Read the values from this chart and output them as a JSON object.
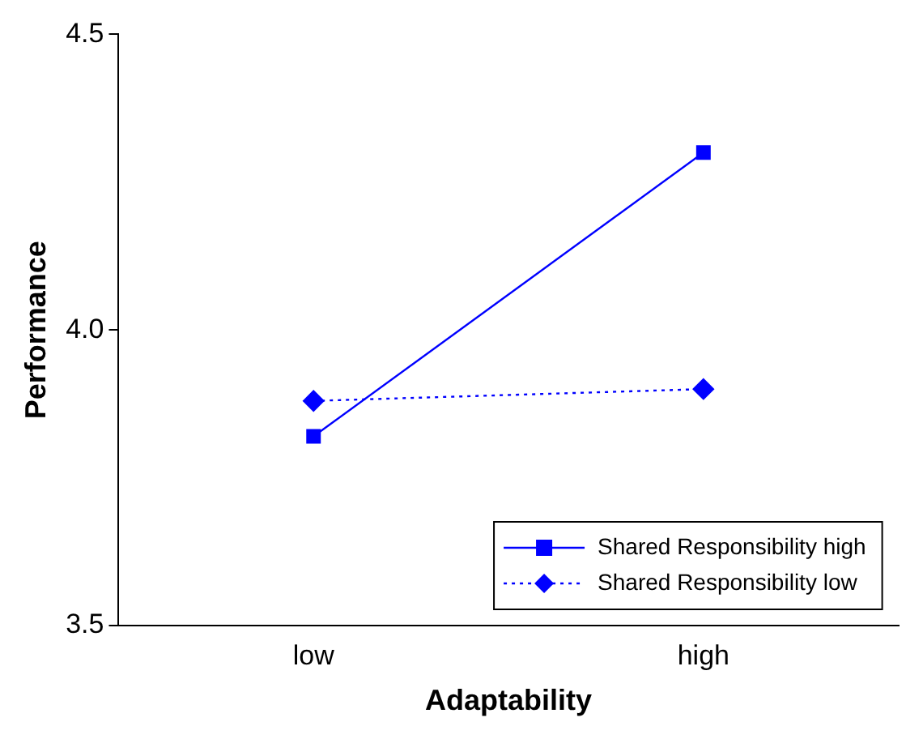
{
  "chart_data": {
    "type": "line",
    "xlabel": "Adaptability",
    "ylabel": "Performance",
    "categories": [
      "low",
      "high"
    ],
    "series": [
      {
        "name": "Shared Responsibility high",
        "color": "#0000ff",
        "values": [
          3.82,
          4.3
        ],
        "marker": "square",
        "line_style": "solid"
      },
      {
        "name": "Shared Responsibility low",
        "color": "#0000ff",
        "values": [
          3.88,
          3.9
        ],
        "marker": "diamond",
        "line_style": "dotted"
      }
    ],
    "ylim": [
      3.5,
      4.5
    ],
    "yticks": [
      {
        "value": 3.5,
        "label": "3.5"
      },
      {
        "value": 4,
        "label": "4.0"
      },
      {
        "value": 4.5,
        "label": "4.5"
      }
    ],
    "grid": false,
    "legend": "bottom right"
  }
}
